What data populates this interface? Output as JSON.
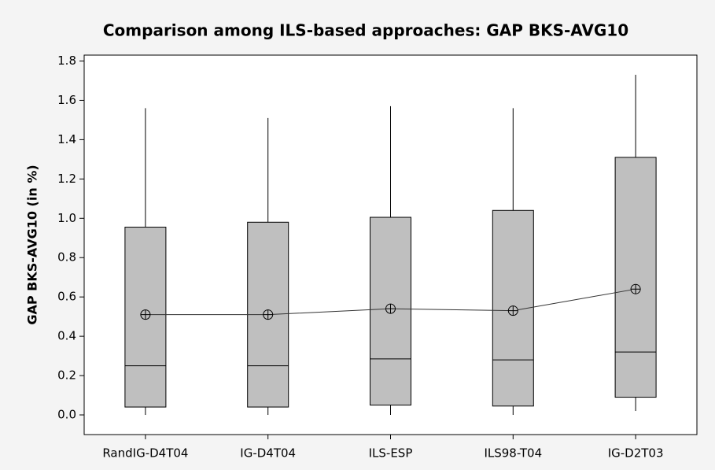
{
  "chart_data": {
    "type": "box",
    "title": "Comparison among ILS-based approaches: GAP BKS-AVG10",
    "y_label": "GAP BKS-AVG10 (in %)",
    "categories": [
      "RandIG-D4T04",
      "IG-D4T04",
      "ILS-ESP",
      "ILS98-T04",
      "IG-D2T03"
    ],
    "boxes": [
      {
        "whisker_low": 0,
        "q1": 0.04,
        "median": 0.25,
        "q3": 0.955,
        "whisker_high": 1.56,
        "mean": 0.51
      },
      {
        "whisker_low": 0,
        "q1": 0.04,
        "median": 0.25,
        "q3": 0.98,
        "whisker_high": 1.51,
        "mean": 0.51
      },
      {
        "whisker_low": 0,
        "q1": 0.05,
        "median": 0.285,
        "q3": 1.005,
        "whisker_high": 1.57,
        "mean": 0.54
      },
      {
        "whisker_low": 0,
        "q1": 0.045,
        "median": 0.28,
        "q3": 1.04,
        "whisker_high": 1.56,
        "mean": 0.53
      },
      {
        "whisker_low": 0.02,
        "q1": 0.09,
        "median": 0.32,
        "q3": 1.31,
        "whisker_high": 1.73,
        "mean": 0.64
      }
    ],
    "box_color": "#bfbfbf",
    "ylim": [
      -0.1,
      1.83
    ],
    "yticks": [
      {
        "value": 0,
        "label": "0.0"
      },
      0.2,
      0.4,
      0.6,
      0.8,
      {
        "value": 1,
        "label": "1.0"
      },
      1.2,
      1.4,
      1.6,
      1.8
    ]
  }
}
